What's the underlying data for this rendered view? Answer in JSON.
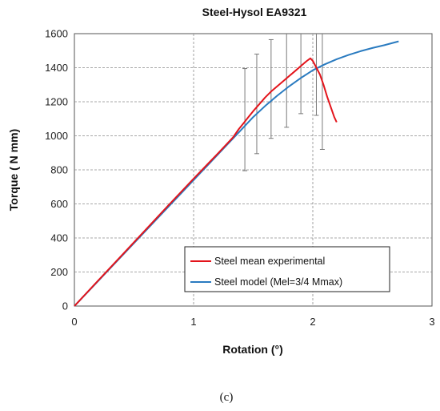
{
  "chart_data": {
    "type": "line",
    "title": "Steel-Hysol EA9321",
    "xlabel": "Rotation (°)",
    "ylabel": "Torque ( N mm)",
    "xlim": [
      0,
      3
    ],
    "ylim": [
      0,
      1600
    ],
    "xticks": [
      0,
      1,
      2,
      3
    ],
    "yticks": [
      0,
      200,
      400,
      600,
      800,
      1000,
      1200,
      1400,
      1600
    ],
    "grid": true,
    "legend_position": "bottom-right",
    "series": [
      {
        "name": "Steel mean experimental",
        "color": "#e3141b",
        "points": [
          [
            0,
            0
          ],
          [
            0.2,
            150
          ],
          [
            0.4,
            300
          ],
          [
            0.6,
            450
          ],
          [
            0.8,
            600
          ],
          [
            1.0,
            748
          ],
          [
            1.2,
            893
          ],
          [
            1.33,
            990
          ],
          [
            1.38,
            1040
          ],
          [
            1.42,
            1075
          ],
          [
            1.46,
            1110
          ],
          [
            1.5,
            1145
          ],
          [
            1.55,
            1185
          ],
          [
            1.6,
            1225
          ],
          [
            1.65,
            1260
          ],
          [
            1.7,
            1290
          ],
          [
            1.75,
            1320
          ],
          [
            1.8,
            1350
          ],
          [
            1.85,
            1380
          ],
          [
            1.9,
            1410
          ],
          [
            1.95,
            1440
          ],
          [
            1.98,
            1455
          ],
          [
            2.0,
            1440
          ],
          [
            2.03,
            1400
          ],
          [
            2.06,
            1360
          ],
          [
            2.09,
            1300
          ],
          [
            2.12,
            1230
          ],
          [
            2.15,
            1170
          ],
          [
            2.18,
            1110
          ],
          [
            2.2,
            1080
          ]
        ]
      },
      {
        "name": "Steel model (Mel=3/4 Mmax)",
        "color": "#2a7bc0",
        "points": [
          [
            0,
            0
          ],
          [
            0.25,
            185
          ],
          [
            0.5,
            370
          ],
          [
            0.75,
            555
          ],
          [
            1.0,
            740
          ],
          [
            1.25,
            925
          ],
          [
            1.4,
            1036
          ],
          [
            1.5,
            1110
          ],
          [
            1.6,
            1175
          ],
          [
            1.7,
            1235
          ],
          [
            1.8,
            1290
          ],
          [
            1.9,
            1340
          ],
          [
            2.0,
            1385
          ],
          [
            2.1,
            1420
          ],
          [
            2.2,
            1450
          ],
          [
            2.3,
            1475
          ],
          [
            2.4,
            1497
          ],
          [
            2.5,
            1516
          ],
          [
            2.6,
            1532
          ],
          [
            2.72,
            1555
          ]
        ]
      }
    ],
    "error_bars": [
      {
        "x": 1.43,
        "low": 795,
        "high": 1395
      },
      {
        "x": 1.53,
        "low": 895,
        "high": 1480
      },
      {
        "x": 1.65,
        "low": 985,
        "high": 1565
      },
      {
        "x": 1.78,
        "low": 1050,
        "high": 1600
      },
      {
        "x": 1.9,
        "low": 1130,
        "high": 1600
      },
      {
        "x": 2.03,
        "low": 1120,
        "high": 1600
      },
      {
        "x": 2.08,
        "low": 920,
        "high": 1600
      }
    ]
  },
  "caption": "(c)"
}
